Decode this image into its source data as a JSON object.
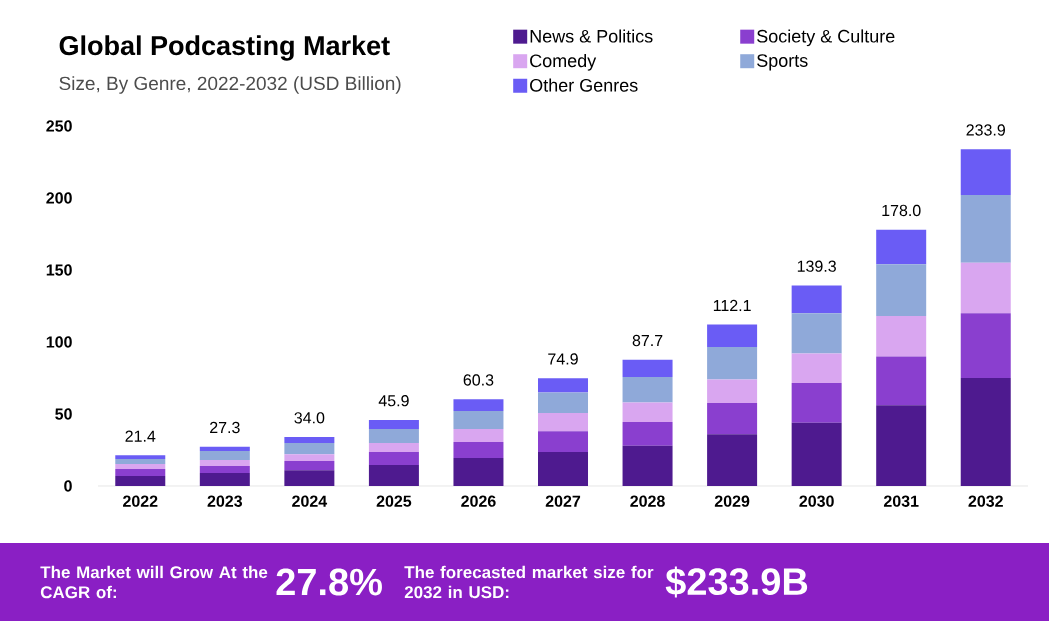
{
  "chart_data": {
    "type": "bar",
    "stacked": true,
    "title": "Global Podcasting Market",
    "subtitle": "Size, By Genre, 2022-2032 (USD Billion)",
    "categories": [
      "2022",
      "2023",
      "2024",
      "2025",
      "2026",
      "2027",
      "2028",
      "2029",
      "2030",
      "2031",
      "2032"
    ],
    "series": [
      {
        "name": "News & Politics",
        "color": "#4e1a8f",
        "values": [
          6.9,
          9,
          11,
          14.6,
          19.4,
          23.6,
          28,
          36,
          44,
          56,
          75
        ]
      },
      {
        "name": "Society & Culture",
        "color": "#8a3fcf",
        "values": [
          4.9,
          4.9,
          6.4,
          9,
          11.2,
          14.4,
          16.5,
          21.6,
          27.5,
          34,
          45
        ]
      },
      {
        "name": "Comedy",
        "color": "#d9a6f0",
        "values": [
          3.5,
          4.1,
          4.6,
          6.3,
          9,
          12.7,
          13.5,
          16.4,
          20.5,
          28,
          35
        ]
      },
      {
        "name": "Sports",
        "color": "#8fa9d9",
        "values": [
          3.4,
          6.3,
          7.9,
          9.7,
          12.4,
          14.3,
          17.7,
          22.5,
          28,
          36,
          47
        ]
      },
      {
        "name": "Other Genres",
        "color": "#6a5cf5",
        "values": [
          2.7,
          3,
          4.1,
          6.3,
          8.3,
          9.9,
          12,
          15.6,
          19.3,
          24,
          31.9
        ]
      }
    ],
    "totals": [
      "21.4",
      "27.3",
      "34.0",
      "45.9",
      "60.3",
      "74.9",
      "87.7",
      "112.1",
      "139.3",
      "178.0",
      "233.9"
    ],
    "ylim": [
      0,
      250
    ],
    "yticks": [
      0,
      50,
      100,
      150,
      200,
      250
    ],
    "legend": "top",
    "annotations": [
      "The Market will Grow At the CAGR of:",
      "27.8%",
      "The forecasted market size for 2032 in USD:",
      "$233.9B"
    ]
  }
}
